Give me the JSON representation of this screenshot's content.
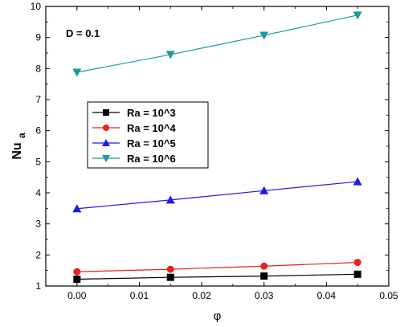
{
  "chart_data": {
    "type": "line",
    "title": "",
    "xlabel": "φ",
    "ylabel_main": "Nu",
    "ylabel_sub": "a",
    "annotation": "D = 0.1",
    "xlim": [
      -0.005,
      0.05
    ],
    "ylim": [
      1,
      10
    ],
    "xticks": [
      0.0,
      0.01,
      0.02,
      0.03,
      0.04,
      0.05
    ],
    "xtick_labels": [
      "0.00",
      "0.01",
      "0.02",
      "0.03",
      "0.04",
      "0.05"
    ],
    "yticks": [
      1,
      2,
      3,
      4,
      5,
      6,
      7,
      8,
      9,
      10
    ],
    "ytick_labels": [
      "1",
      "2",
      "3",
      "4",
      "5",
      "6",
      "7",
      "8",
      "9",
      "10"
    ],
    "grid": false,
    "legend_position": "middle-left",
    "x": [
      0.0,
      0.015,
      0.03,
      0.045
    ],
    "series": [
      {
        "name": "Ra = 10^3",
        "values": [
          1.22,
          1.28,
          1.32,
          1.38
        ],
        "color": "#000000",
        "marker": "square"
      },
      {
        "name": "Ra = 10^4",
        "values": [
          1.46,
          1.54,
          1.64,
          1.76
        ],
        "color": "#e8211b",
        "marker": "circle"
      },
      {
        "name": "Ra = 10^5",
        "values": [
          3.49,
          3.77,
          4.07,
          4.36
        ],
        "color": "#1b1be6",
        "marker": "triangle-up"
      },
      {
        "name": "Ra = 10^6",
        "values": [
          7.88,
          8.45,
          9.07,
          9.72
        ],
        "color": "#1a9a9a",
        "marker": "triangle-down"
      }
    ]
  }
}
